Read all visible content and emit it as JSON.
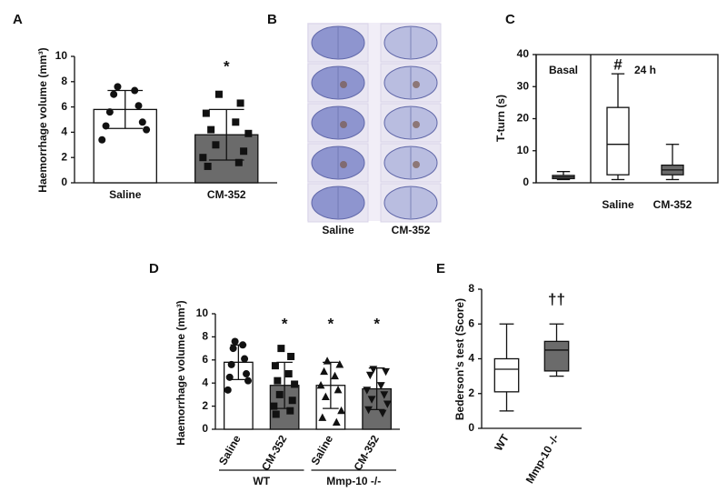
{
  "chart_data": [
    {
      "type": "bar",
      "panel_label": "A",
      "ylabel": "Haemorrhage volume (mm³)",
      "categories": [
        "Saline",
        "CM-352"
      ],
      "values": [
        5.8,
        3.8
      ],
      "errors": [
        1.5,
        2.0
      ],
      "points": [
        [
          7.6,
          7.3,
          7.0,
          6.1,
          5.6,
          4.8,
          4.5,
          4.2,
          3.4
        ],
        [
          7.0,
          6.3,
          5.5,
          4.8,
          4.2,
          3.9,
          3.0,
          2.5,
          2.0,
          1.6,
          1.3
        ]
      ],
      "markers": [
        "circle",
        "square"
      ],
      "colors": [
        "#ffffff",
        "#6b6b6b"
      ],
      "significance": [
        null,
        "*"
      ],
      "ylim": [
        0,
        10
      ],
      "yticks": [
        0,
        2,
        4,
        6,
        8,
        10
      ]
    },
    {
      "type": "image",
      "panel_label": "B",
      "categories": [
        "Saline",
        "CM-352"
      ]
    },
    {
      "type": "box",
      "panel_label": "C",
      "ylabel": "T-turn (s)",
      "categories": [
        null,
        "Saline",
        "CM-352"
      ],
      "group_labels": [
        "Basal",
        "24 h"
      ],
      "boxes": [
        {
          "min": 1.0,
          "q1": 1.3,
          "median": 1.8,
          "q3": 2.3,
          "max": 3.5
        },
        {
          "min": 1.0,
          "q1": 2.5,
          "median": 12,
          "q3": 23.5,
          "max": 34
        },
        {
          "min": 1.0,
          "q1": 2.5,
          "median": 4,
          "q3": 5.5,
          "max": 12
        }
      ],
      "colors": [
        "#8a8a8a",
        "#ffffff",
        "#6b6b6b"
      ],
      "significance": [
        null,
        "#",
        null
      ],
      "ylim": [
        0,
        40
      ],
      "yticks": [
        0,
        10,
        20,
        30,
        40
      ]
    },
    {
      "type": "bar",
      "panel_label": "D",
      "ylabel": "Haemorrhage volume (mm³)",
      "categories": [
        "Saline",
        "CM-352",
        "Saline",
        "CM-352"
      ],
      "group_labels": [
        "WT",
        "Mmp-10 -/-"
      ],
      "values": [
        5.8,
        3.8,
        3.8,
        3.5
      ],
      "errors": [
        1.5,
        2.0,
        2.0,
        1.8
      ],
      "points": [
        [
          7.6,
          7.3,
          7.0,
          6.1,
          5.6,
          4.8,
          4.5,
          4.2,
          3.4
        ],
        [
          7.0,
          6.3,
          5.5,
          4.8,
          4.2,
          3.9,
          3.0,
          2.5,
          2.0,
          1.6,
          1.3
        ],
        [
          5.9,
          5.6,
          5.0,
          4.6,
          3.8,
          3.4,
          2.8,
          1.6,
          1.0,
          0.6
        ],
        [
          5.2,
          5.0,
          4.7,
          3.8,
          3.4,
          3.0,
          2.6,
          2.2,
          1.7,
          1.4
        ]
      ],
      "markers": [
        "circle",
        "square",
        "triangle",
        "triangle-down"
      ],
      "colors": [
        "#ffffff",
        "#6b6b6b",
        "#ffffff",
        "#6b6b6b"
      ],
      "significance": [
        null,
        "*",
        "*",
        "*"
      ],
      "ylim": [
        0,
        10
      ],
      "yticks": [
        0,
        2,
        4,
        6,
        8,
        10
      ]
    },
    {
      "type": "box",
      "panel_label": "E",
      "ylabel": "Bederson's test (Score)",
      "categories": [
        "WT",
        "Mmp-10 -/-"
      ],
      "boxes": [
        {
          "min": 1.0,
          "q1": 2.1,
          "median": 3.4,
          "q3": 4.0,
          "max": 6.0
        },
        {
          "min": 3.0,
          "q1": 3.3,
          "median": 4.5,
          "q3": 5.0,
          "max": 6.0
        }
      ],
      "colors": [
        "#ffffff",
        "#6b6b6b"
      ],
      "significance": [
        null,
        "††"
      ],
      "ylim": [
        0,
        8
      ],
      "yticks": [
        0,
        2,
        4,
        6,
        8
      ]
    }
  ]
}
